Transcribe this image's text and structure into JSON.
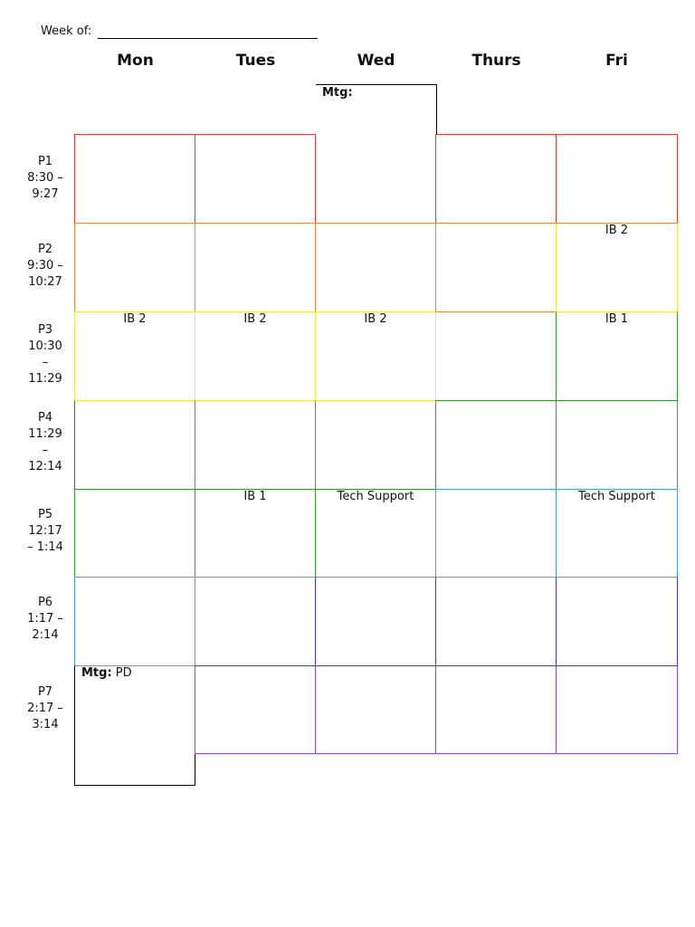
{
  "header": {
    "week_label": "Week of:"
  },
  "days": [
    "Mon",
    "Tues",
    "Wed",
    "Thurs",
    "Fri"
  ],
  "periods": [
    {
      "id": "P1",
      "l1": "P1",
      "l2": "8:30 –",
      "l3": "9:27",
      "l4": ""
    },
    {
      "id": "P2",
      "l1": "P2",
      "l2": "9:30 –",
      "l3": "10:27",
      "l4": ""
    },
    {
      "id": "P3",
      "l1": "P3",
      "l2": "10:30",
      "l3": "–",
      "l4": "11:29"
    },
    {
      "id": "P4",
      "l1": "P4",
      "l2": "11:29",
      "l3": "–",
      "l4": "12:14"
    },
    {
      "id": "P5",
      "l1": "P5",
      "l2": "12:17",
      "l3": "– 1:14",
      "l4": ""
    },
    {
      "id": "P6",
      "l1": "P6",
      "l2": "1:17 –",
      "l3": "2:14",
      "l4": ""
    },
    {
      "id": "P7",
      "l1": "P7",
      "l2": "2:17 –",
      "l3": "3:14",
      "l4": ""
    }
  ],
  "meetings": {
    "wed": {
      "label": "Mtg:",
      "text": ""
    },
    "mon": {
      "label": "Mtg:",
      "text": "PD"
    }
  },
  "cells": {
    "p2_fri": "IB 2",
    "p3_mon": "IB 2",
    "p3_tue": "IB 2",
    "p3_wed": "IB 2",
    "p3_fri": "IB 1",
    "p5_tue": "IB 1",
    "p5_wed": "Tech Support",
    "p5_fri": "Tech Support"
  },
  "colors": {
    "p1": "#e03c3c",
    "p2": "#f0894a",
    "p3": "#f2e94e",
    "p4": "#7a7a7a",
    "p5": "#3a9a3a",
    "p6": "#4aa3e0",
    "p7": "#8a4ad0"
  }
}
